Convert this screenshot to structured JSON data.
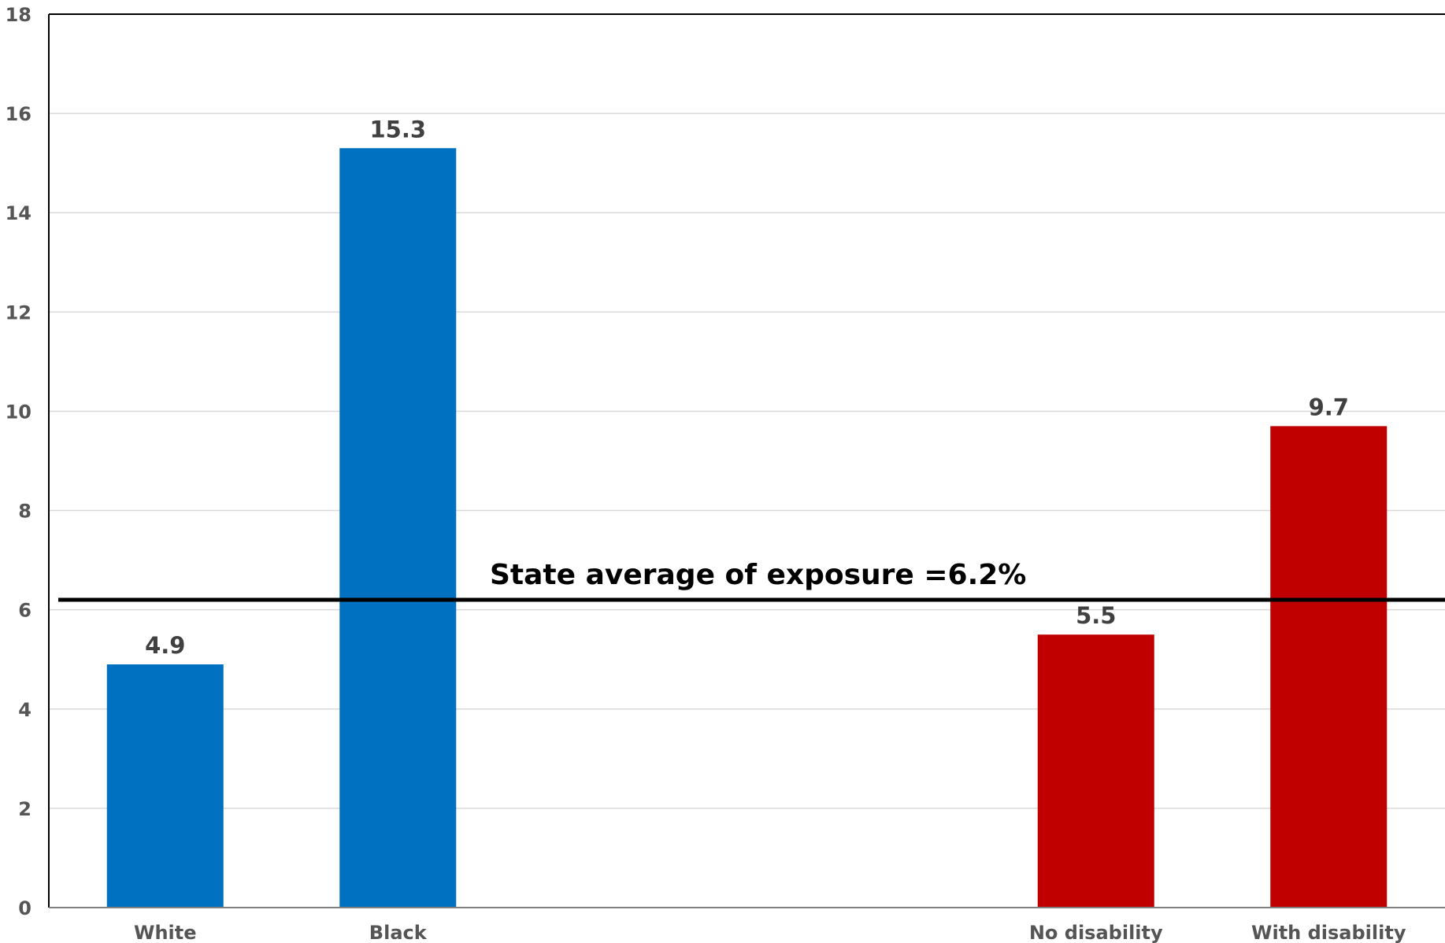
{
  "chart_data": {
    "type": "bar",
    "categories": [
      "White",
      "Black",
      "",
      "",
      "No disability",
      "With disability"
    ],
    "values": [
      4.9,
      15.3,
      null,
      null,
      5.5,
      9.7
    ],
    "bar_colors": [
      "#0070C0",
      "#0070C0",
      null,
      null,
      "#C00000",
      "#C00000"
    ],
    "data_labels": [
      "4.9",
      "15.3",
      "",
      "",
      "5.5",
      "9.7"
    ],
    "ylim": [
      0,
      18
    ],
    "yticks": [
      "0",
      "2",
      "4",
      "6",
      "8",
      "10",
      "12",
      "14",
      "16",
      "18"
    ],
    "grid": true,
    "reference_line": {
      "value": 6.2,
      "label": "State average of exposure =6.2%",
      "color": "#000000"
    },
    "title": "",
    "xlabel": "",
    "ylabel": ""
  }
}
